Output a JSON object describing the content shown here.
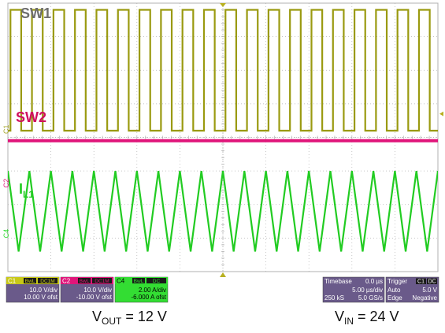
{
  "chart_data": {
    "type": "line",
    "traces": [
      {
        "name": "SW1",
        "color": "#9a9a10",
        "shape": "square",
        "period_us": 2.5,
        "duty": 0.5,
        "high_div": 3.8,
        "low_div": 0.2
      },
      {
        "name": "SW2",
        "color": "#e0157a",
        "shape": "flat",
        "level_div": -0.1
      },
      {
        "name": "L1",
        "name_sub": "L1",
        "name_main": "I",
        "color": "#22cc22",
        "shape": "triangle",
        "period_us": 2.5,
        "peak_div": -1.0,
        "valley_div": -3.4
      }
    ],
    "x_divisions": 10,
    "y_divisions": 8,
    "timebase_us_per_div": 5.0
  },
  "channels": {
    "c1": {
      "label": "C1",
      "tags": [
        "BwL",
        "DC1M"
      ],
      "scale": "10.0 V/div",
      "offset": "10.00 V ofst",
      "color": "#a6a62a"
    },
    "c2": {
      "label": "C2",
      "tags": [
        "BwL",
        "DC1M"
      ],
      "scale": "10.0 V/div",
      "offset": "-10.00 V ofst",
      "color": "#e0157a"
    },
    "c4": {
      "label": "C4",
      "tags": [
        "BwL",
        "DC"
      ],
      "scale": "2.00 A/div",
      "offset": "-6.000 A ofst",
      "color": "#33dd33"
    }
  },
  "timebase": {
    "label": "Timebase",
    "delay": "0.0 µs",
    "scale": "5.00 µs/div",
    "samples": "250 kS",
    "rate": "5.0 GS/s"
  },
  "trigger": {
    "label": "Trigger",
    "source": "C1",
    "coupling": "DC",
    "level": "5.0 V",
    "mode": "Auto",
    "type": "Edge",
    "slope": "Negative"
  },
  "markers": {
    "c1": "1",
    "c2": "2",
    "c4": "4"
  },
  "labels": {
    "vout_prefix": "V",
    "vout_sub": "OUT",
    "vout_suffix": " = 12 V",
    "vin_prefix": "V",
    "vin_sub": "IN",
    "vin_suffix": " = 24 V"
  },
  "colors": {
    "grid": "#b0b0b0",
    "grid_bg": "#ffffff",
    "panel": "#6a5a8a"
  }
}
